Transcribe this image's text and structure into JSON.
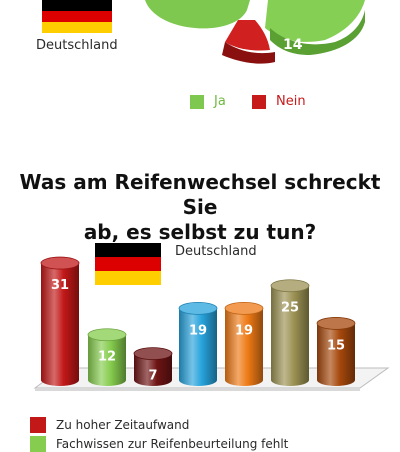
{
  "top": {
    "country_label": "Deutschland",
    "legend": [
      {
        "label": "Ja",
        "color": "#7ec850"
      },
      {
        "label": "Nein",
        "color": "#c71a1a"
      }
    ],
    "pie_label_nein": "14"
  },
  "flag_colors": [
    "#000000",
    "#dd0000",
    "#ffce00"
  ],
  "chart_data": {
    "type": "bar",
    "title_lines": [
      "Was am Reifenwechsel schreckt Sie",
      "ab, es selbst zu tun?"
    ],
    "country_label": "Deutschland",
    "bars": [
      {
        "value": 31,
        "color": "#c21818",
        "legend": "Zu hoher Zeitaufwand"
      },
      {
        "value": 12,
        "color": "#86cc4e",
        "legend": "Fachwissen zur Reifenbeurteilung fehlt"
      },
      {
        "value": 7,
        "color": "#6e1414"
      },
      {
        "value": 19,
        "color": "#27a3dc"
      },
      {
        "value": 19,
        "color": "#ee7a16"
      },
      {
        "value": 25,
        "color": "#9c9254"
      },
      {
        "value": 15,
        "color": "#a6480c"
      }
    ],
    "ylim": [
      0,
      35
    ]
  }
}
